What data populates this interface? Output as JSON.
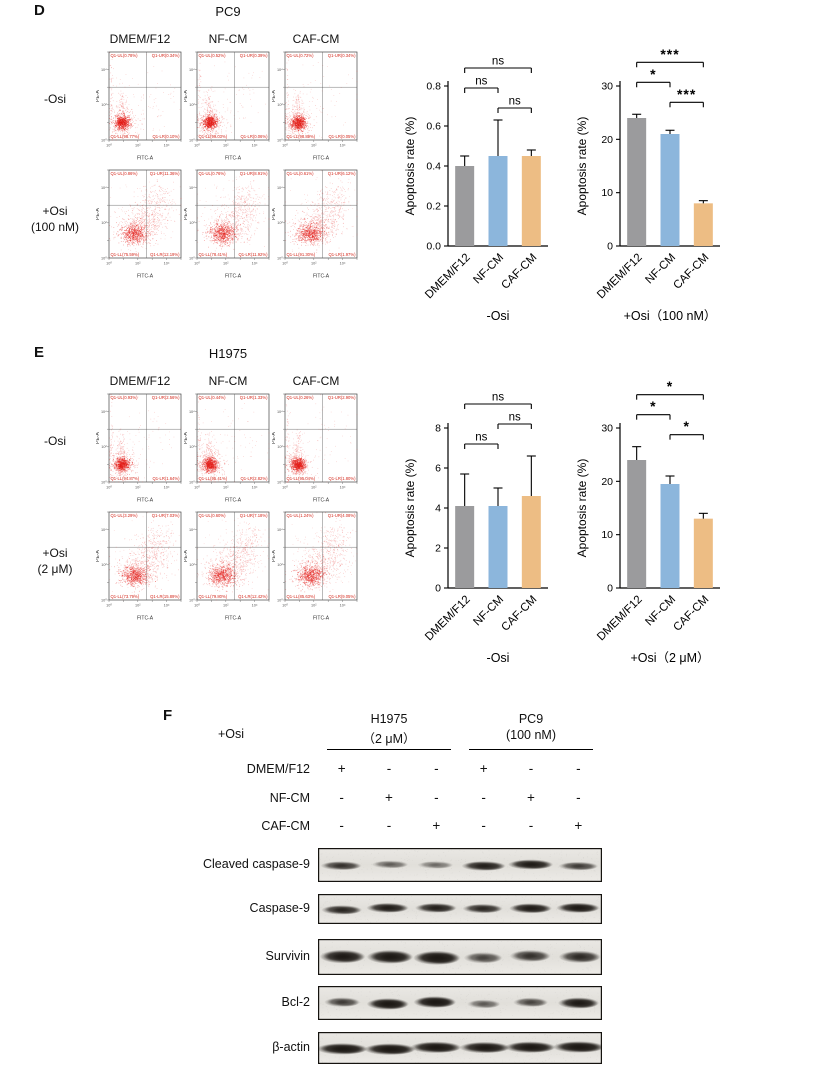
{
  "flow_axis": {
    "x": "FITC-A",
    "y": "PE-A",
    "decades": [
      "10⁰",
      "10¹",
      "10²",
      "10³",
      "10⁴",
      "10⁵"
    ]
  },
  "colors": {
    "bar_gray": "#9B9B9D",
    "bar_blue": "#8CB6DC",
    "bar_orange": "#EDBD84",
    "scatter_red": "#E41E19",
    "quadrant_label": "#D42A1E"
  },
  "panelD": {
    "letter": "D",
    "cell_line": "PC9",
    "col_headers": [
      "DMEM/F12",
      "NF-CM",
      "CAF-CM"
    ],
    "rows": [
      {
        "label_lines": [
          "-Osi"
        ],
        "pattern": "control",
        "plots": [
          {
            "quadrants": [
              "Q1-UL(0.78%)",
              "Q1-UR(0.34%)",
              "Q1-LL(98.77%)",
              "Q1-LR(0.10%)"
            ]
          },
          {
            "quadrants": [
              "Q1-UL(0.52%)",
              "Q1-UR(0.39%)",
              "Q1-LL(99.03%)",
              "Q1-LR(0.06%)"
            ]
          },
          {
            "quadrants": [
              "Q1-UL(0.72%)",
              "Q1-UR(0.34%)",
              "Q1-LL(98.89%)",
              "Q1-LR(0.05%)"
            ]
          }
        ]
      },
      {
        "label_lines": [
          "+Osi",
          "(100 nM)"
        ],
        "pattern": "treated",
        "plots": [
          {
            "quadrants": [
              "Q1-UL(0.86%)",
              "Q1-UR(11.36%)",
              "Q1-LL(75.59%)",
              "Q1-LR(12.19%)"
            ]
          },
          {
            "quadrants": [
              "Q1-UL(0.76%)",
              "Q1-UR(8.91%)",
              "Q1-LL(78.41%)",
              "Q1-LR(11.92%)"
            ]
          },
          {
            "quadrants": [
              "Q1-UL(0.61%)",
              "Q1-UR(6.12%)",
              "Q1-LL(91.30%)",
              "Q1-LR(1.97%)"
            ]
          }
        ]
      }
    ]
  },
  "panelE": {
    "letter": "E",
    "cell_line": "H1975",
    "col_headers": [
      "DMEM/F12",
      "NF-CM",
      "CAF-CM"
    ],
    "rows": [
      {
        "label_lines": [
          "-Osi"
        ],
        "pattern": "control",
        "plots": [
          {
            "quadrants": [
              "Q1-UL(0.93%)",
              "Q1-UR(2.56%)",
              "Q1-LL(94.87%)",
              "Q1-LR(1.64%)"
            ]
          },
          {
            "quadrants": [
              "Q1-UL(0.44%)",
              "Q1-UR(1.33%)",
              "Q1-LL(95.41%)",
              "Q1-LR(2.82%)"
            ]
          },
          {
            "quadrants": [
              "Q1-UL(0.26%)",
              "Q1-UR(2.90%)",
              "Q1-LL(95.04%)",
              "Q1-LR(1.80%)"
            ]
          }
        ]
      },
      {
        "label_lines": [
          "+Osi",
          "(2 μM)"
        ],
        "pattern": "treated",
        "plots": [
          {
            "quadrants": [
              "Q1-UL(3.29%)",
              "Q1-UR(7.03%)",
              "Q1-LL(73.79%)",
              "Q1-LR(15.89%)"
            ]
          },
          {
            "quadrants": [
              "Q1-UL(0.60%)",
              "Q1-UR(7.18%)",
              "Q1-LL(79.80%)",
              "Q1-LR(12.42%)"
            ]
          },
          {
            "quadrants": [
              "Q1-UL(1.24%)",
              "Q1-UR(4.08%)",
              "Q1-LL(85.63%)",
              "Q1-LR(9.05%)"
            ]
          }
        ]
      }
    ]
  },
  "chart_data": [
    {
      "id": "pc9-noosi",
      "type": "bar",
      "categories": [
        "DMEM/F12",
        "NF-CM",
        "CAF-CM"
      ],
      "values": [
        0.4,
        0.45,
        0.45
      ],
      "errors": [
        0.05,
        0.18,
        0.03
      ],
      "ylabel": "Apoptosis rate (%)",
      "xlabel": "-Osi",
      "ylim": [
        0,
        0.8
      ],
      "yticks": [
        0,
        0.2,
        0.4,
        0.6,
        0.8
      ],
      "ytick_labels": [
        "0.0",
        "0.2",
        "0.4",
        "0.6",
        "0.8"
      ],
      "bar_colors": [
        "#9B9B9D",
        "#8CB6DC",
        "#EDBD84"
      ],
      "comparisons": [
        {
          "a": 1,
          "b": 2,
          "label": "ns",
          "level": 0
        },
        {
          "a": 0,
          "b": 1,
          "label": "ns",
          "level": 1
        },
        {
          "a": 0,
          "b": 2,
          "label": "ns",
          "level": 2
        }
      ]
    },
    {
      "id": "pc9-osi",
      "type": "bar",
      "categories": [
        "DMEM/F12",
        "NF-CM",
        "CAF-CM"
      ],
      "values": [
        24,
        21,
        8
      ],
      "errors": [
        0.7,
        0.7,
        0.5
      ],
      "ylabel": "Apoptosis rate (%)",
      "xlabel": "+Osi（100 nM）",
      "ylim": [
        0,
        30
      ],
      "yticks": [
        0,
        10,
        20,
        30
      ],
      "ytick_labels": [
        "0",
        "10",
        "20",
        "30"
      ],
      "bar_colors": [
        "#9B9B9D",
        "#8CB6DC",
        "#EDBD84"
      ],
      "comparisons": [
        {
          "a": 1,
          "b": 2,
          "label": "***",
          "level": 0
        },
        {
          "a": 0,
          "b": 1,
          "label": "*",
          "level": 1
        },
        {
          "a": 0,
          "b": 2,
          "label": "***",
          "level": 2
        }
      ]
    },
    {
      "id": "h1975-noosi",
      "type": "bar",
      "categories": [
        "DMEM/F12",
        "NF-CM",
        "CAF-CM"
      ],
      "values": [
        4.1,
        4.1,
        4.6
      ],
      "errors": [
        1.6,
        0.9,
        2.0
      ],
      "ylabel": "Apoptosis rate (%)",
      "xlabel": "-Osi",
      "ylim": [
        0,
        8
      ],
      "yticks": [
        0,
        2,
        4,
        6,
        8
      ],
      "ytick_labels": [
        "0",
        "2",
        "4",
        "6",
        "8"
      ],
      "bar_colors": [
        "#9B9B9D",
        "#8CB6DC",
        "#EDBD84"
      ],
      "comparisons": [
        {
          "a": 0,
          "b": 1,
          "label": "ns",
          "level": 0
        },
        {
          "a": 1,
          "b": 2,
          "label": "ns",
          "level": 1
        },
        {
          "a": 0,
          "b": 2,
          "label": "ns",
          "level": 2
        }
      ]
    },
    {
      "id": "h1975-osi",
      "type": "bar",
      "categories": [
        "DMEM/F12",
        "NF-CM",
        "CAF-CM"
      ],
      "values": [
        24,
        19.5,
        13
      ],
      "errors": [
        2.5,
        1.5,
        1.0
      ],
      "ylabel": "Apoptosis rate (%)",
      "xlabel": "+Osi（2 μM）",
      "ylim": [
        0,
        30
      ],
      "yticks": [
        0,
        10,
        20,
        30
      ],
      "ytick_labels": [
        "0",
        "10",
        "20",
        "30"
      ],
      "bar_colors": [
        "#9B9B9D",
        "#8CB6DC",
        "#EDBD84"
      ],
      "comparisons": [
        {
          "a": 1,
          "b": 2,
          "label": "*",
          "level": 0
        },
        {
          "a": 0,
          "b": 1,
          "label": "*",
          "level": 1
        },
        {
          "a": 0,
          "b": 2,
          "label": "*",
          "level": 2
        }
      ]
    }
  ],
  "western": {
    "letter": "F",
    "osi_label": "+Osi",
    "groups": [
      {
        "name": "H1975",
        "dose": "（2 μM）"
      },
      {
        "name": "PC9",
        "dose": "(100 nM)"
      }
    ],
    "conditions": [
      {
        "label": "DMEM/F12",
        "signs": [
          "+",
          "-",
          "-",
          "+",
          "-",
          "-"
        ]
      },
      {
        "label": "NF-CM",
        "signs": [
          "-",
          "+",
          "-",
          "-",
          "+",
          "-"
        ]
      },
      {
        "label": "CAF-CM",
        "signs": [
          "-",
          "-",
          "+",
          "-",
          "-",
          "+"
        ]
      }
    ],
    "blots": [
      {
        "label": "Cleaved caspase-9",
        "intensities": [
          0.62,
          0.38,
          0.33,
          0.8,
          0.85,
          0.55
        ],
        "band_h": 9,
        "band_w": 40
      },
      {
        "label": "Caspase-9",
        "intensities": [
          0.72,
          0.82,
          0.78,
          0.7,
          0.85,
          0.88
        ],
        "band_h": 9,
        "band_w": 38
      },
      {
        "label": "Survivin",
        "intensities": [
          0.88,
          0.92,
          0.97,
          0.5,
          0.62,
          0.68
        ],
        "band_h": 12,
        "band_w": 40
      },
      {
        "label": "Bcl-2",
        "intensities": [
          0.55,
          0.95,
          0.97,
          0.4,
          0.5,
          0.88
        ],
        "band_h": 10,
        "band_w": 36
      },
      {
        "label": "β-actin",
        "intensities": [
          0.93,
          0.95,
          0.93,
          0.9,
          0.92,
          0.95
        ],
        "band_h": 10,
        "band_w": 44
      }
    ]
  }
}
